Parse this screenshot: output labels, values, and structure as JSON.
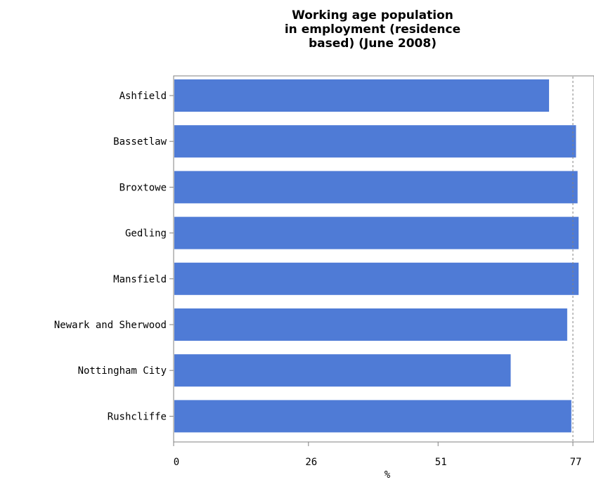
{
  "chart_data": {
    "type": "bar",
    "orientation": "horizontal",
    "title_lines": [
      "Working age population",
      "in employment (residence",
      "based) (June 2008)"
    ],
    "xlabel": "%",
    "ylabel": "",
    "categories": [
      "Ashfield",
      "Bassetlaw",
      "Broxtowe",
      "Gedling",
      "Mansfield",
      "Newark and Sherwood",
      "Nottingham City",
      "Rushcliffe"
    ],
    "values": [
      72.4,
      77.6,
      77.9,
      78.1,
      78.1,
      75.9,
      65.0,
      76.7
    ],
    "xticks": [
      "0",
      "26",
      "51",
      "77"
    ],
    "xlim": [
      0,
      77
    ],
    "reference_line": 77,
    "bar_color": "#4f7bd6",
    "grid": false
  }
}
